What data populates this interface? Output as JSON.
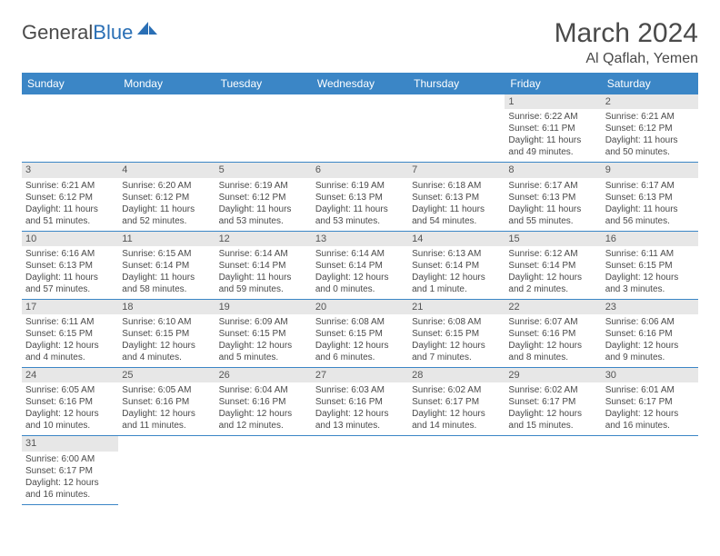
{
  "brand": {
    "part1": "General",
    "part2": "Blue"
  },
  "title": "March 2024",
  "location": "Al Qaflah, Yemen",
  "weekdays": [
    "Sunday",
    "Monday",
    "Tuesday",
    "Wednesday",
    "Thursday",
    "Friday",
    "Saturday"
  ],
  "colors": {
    "header_bg": "#3b86c6",
    "header_text": "#ffffff",
    "daynum_bg": "#e7e7e7",
    "cell_border": "#3b86c6",
    "text": "#4a4a4a",
    "logo_blue": "#2a6fb5"
  },
  "fonts": {
    "title_size_pt": 22,
    "location_size_pt": 12,
    "weekday_size_pt": 9,
    "cell_size_pt": 7.5
  },
  "layout": {
    "first_weekday_index": 5,
    "weeks": 6
  },
  "days": [
    {
      "n": 1,
      "sunrise": "6:22 AM",
      "sunset": "6:11 PM",
      "daylight": "11 hours and 49 minutes."
    },
    {
      "n": 2,
      "sunrise": "6:21 AM",
      "sunset": "6:12 PM",
      "daylight": "11 hours and 50 minutes."
    },
    {
      "n": 3,
      "sunrise": "6:21 AM",
      "sunset": "6:12 PM",
      "daylight": "11 hours and 51 minutes."
    },
    {
      "n": 4,
      "sunrise": "6:20 AM",
      "sunset": "6:12 PM",
      "daylight": "11 hours and 52 minutes."
    },
    {
      "n": 5,
      "sunrise": "6:19 AM",
      "sunset": "6:12 PM",
      "daylight": "11 hours and 53 minutes."
    },
    {
      "n": 6,
      "sunrise": "6:19 AM",
      "sunset": "6:13 PM",
      "daylight": "11 hours and 53 minutes."
    },
    {
      "n": 7,
      "sunrise": "6:18 AM",
      "sunset": "6:13 PM",
      "daylight": "11 hours and 54 minutes."
    },
    {
      "n": 8,
      "sunrise": "6:17 AM",
      "sunset": "6:13 PM",
      "daylight": "11 hours and 55 minutes."
    },
    {
      "n": 9,
      "sunrise": "6:17 AM",
      "sunset": "6:13 PM",
      "daylight": "11 hours and 56 minutes."
    },
    {
      "n": 10,
      "sunrise": "6:16 AM",
      "sunset": "6:13 PM",
      "daylight": "11 hours and 57 minutes."
    },
    {
      "n": 11,
      "sunrise": "6:15 AM",
      "sunset": "6:14 PM",
      "daylight": "11 hours and 58 minutes."
    },
    {
      "n": 12,
      "sunrise": "6:14 AM",
      "sunset": "6:14 PM",
      "daylight": "11 hours and 59 minutes."
    },
    {
      "n": 13,
      "sunrise": "6:14 AM",
      "sunset": "6:14 PM",
      "daylight": "12 hours and 0 minutes."
    },
    {
      "n": 14,
      "sunrise": "6:13 AM",
      "sunset": "6:14 PM",
      "daylight": "12 hours and 1 minute."
    },
    {
      "n": 15,
      "sunrise": "6:12 AM",
      "sunset": "6:14 PM",
      "daylight": "12 hours and 2 minutes."
    },
    {
      "n": 16,
      "sunrise": "6:11 AM",
      "sunset": "6:15 PM",
      "daylight": "12 hours and 3 minutes."
    },
    {
      "n": 17,
      "sunrise": "6:11 AM",
      "sunset": "6:15 PM",
      "daylight": "12 hours and 4 minutes."
    },
    {
      "n": 18,
      "sunrise": "6:10 AM",
      "sunset": "6:15 PM",
      "daylight": "12 hours and 4 minutes."
    },
    {
      "n": 19,
      "sunrise": "6:09 AM",
      "sunset": "6:15 PM",
      "daylight": "12 hours and 5 minutes."
    },
    {
      "n": 20,
      "sunrise": "6:08 AM",
      "sunset": "6:15 PM",
      "daylight": "12 hours and 6 minutes."
    },
    {
      "n": 21,
      "sunrise": "6:08 AM",
      "sunset": "6:15 PM",
      "daylight": "12 hours and 7 minutes."
    },
    {
      "n": 22,
      "sunrise": "6:07 AM",
      "sunset": "6:16 PM",
      "daylight": "12 hours and 8 minutes."
    },
    {
      "n": 23,
      "sunrise": "6:06 AM",
      "sunset": "6:16 PM",
      "daylight": "12 hours and 9 minutes."
    },
    {
      "n": 24,
      "sunrise": "6:05 AM",
      "sunset": "6:16 PM",
      "daylight": "12 hours and 10 minutes."
    },
    {
      "n": 25,
      "sunrise": "6:05 AM",
      "sunset": "6:16 PM",
      "daylight": "12 hours and 11 minutes."
    },
    {
      "n": 26,
      "sunrise": "6:04 AM",
      "sunset": "6:16 PM",
      "daylight": "12 hours and 12 minutes."
    },
    {
      "n": 27,
      "sunrise": "6:03 AM",
      "sunset": "6:16 PM",
      "daylight": "12 hours and 13 minutes."
    },
    {
      "n": 28,
      "sunrise": "6:02 AM",
      "sunset": "6:17 PM",
      "daylight": "12 hours and 14 minutes."
    },
    {
      "n": 29,
      "sunrise": "6:02 AM",
      "sunset": "6:17 PM",
      "daylight": "12 hours and 15 minutes."
    },
    {
      "n": 30,
      "sunrise": "6:01 AM",
      "sunset": "6:17 PM",
      "daylight": "12 hours and 16 minutes."
    },
    {
      "n": 31,
      "sunrise": "6:00 AM",
      "sunset": "6:17 PM",
      "daylight": "12 hours and 16 minutes."
    }
  ],
  "labels": {
    "sunrise": "Sunrise:",
    "sunset": "Sunset:",
    "daylight": "Daylight:"
  }
}
